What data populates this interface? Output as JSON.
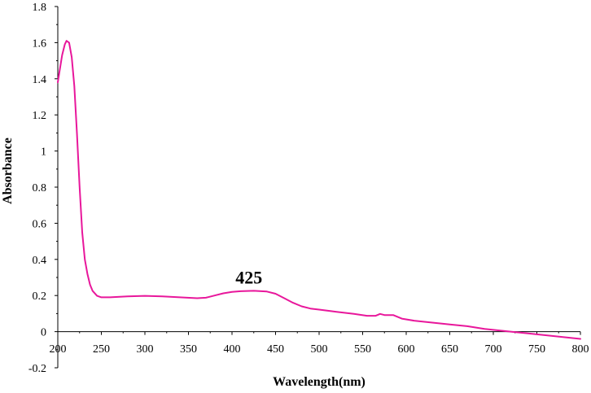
{
  "chart_data": {
    "type": "line",
    "title": "",
    "xlabel": "Wavelength(nm)",
    "ylabel": "Absorbance",
    "xlim": [
      200,
      800
    ],
    "ylim": [
      -0.2,
      1.8
    ],
    "x_ticks": [
      200,
      250,
      300,
      350,
      400,
      450,
      500,
      550,
      600,
      650,
      700,
      750,
      800
    ],
    "y_ticks": [
      -0.2,
      0,
      0.2,
      0.4,
      0.6,
      0.8,
      1,
      1.2,
      1.4,
      1.6,
      1.8
    ],
    "y_tick_labels": [
      "-0.2",
      "0",
      "0.2",
      "0.4",
      "0.6",
      "0.8",
      "1",
      "1.2",
      "1.4",
      "1.6",
      "1.8"
    ],
    "grid": false,
    "series": [
      {
        "color": "#e8179b",
        "points": [
          [
            200,
            1.38
          ],
          [
            202,
            1.44
          ],
          [
            205,
            1.53
          ],
          [
            208,
            1.59
          ],
          [
            210,
            1.61
          ],
          [
            213,
            1.6
          ],
          [
            216,
            1.52
          ],
          [
            219,
            1.36
          ],
          [
            222,
            1.1
          ],
          [
            225,
            0.8
          ],
          [
            228,
            0.55
          ],
          [
            231,
            0.4
          ],
          [
            234,
            0.32
          ],
          [
            237,
            0.26
          ],
          [
            240,
            0.225
          ],
          [
            245,
            0.198
          ],
          [
            250,
            0.19
          ],
          [
            260,
            0.19
          ],
          [
            280,
            0.195
          ],
          [
            300,
            0.198
          ],
          [
            320,
            0.195
          ],
          [
            340,
            0.19
          ],
          [
            360,
            0.185
          ],
          [
            370,
            0.188
          ],
          [
            380,
            0.2
          ],
          [
            390,
            0.212
          ],
          [
            400,
            0.22
          ],
          [
            410,
            0.224
          ],
          [
            425,
            0.226
          ],
          [
            440,
            0.222
          ],
          [
            450,
            0.21
          ],
          [
            460,
            0.185
          ],
          [
            470,
            0.16
          ],
          [
            480,
            0.14
          ],
          [
            490,
            0.128
          ],
          [
            500,
            0.122
          ],
          [
            520,
            0.11
          ],
          [
            540,
            0.098
          ],
          [
            555,
            0.088
          ],
          [
            565,
            0.088
          ],
          [
            570,
            0.098
          ],
          [
            575,
            0.092
          ],
          [
            585,
            0.092
          ],
          [
            595,
            0.072
          ],
          [
            610,
            0.06
          ],
          [
            630,
            0.05
          ],
          [
            650,
            0.04
          ],
          [
            670,
            0.03
          ],
          [
            690,
            0.015
          ],
          [
            710,
            0.005
          ],
          [
            720,
            0.0
          ],
          [
            740,
            -0.01
          ],
          [
            760,
            -0.02
          ],
          [
            780,
            -0.03
          ],
          [
            800,
            -0.04
          ]
        ]
      }
    ],
    "annotations": [
      {
        "text": "425",
        "x": 425,
        "y": 0.226
      }
    ]
  }
}
